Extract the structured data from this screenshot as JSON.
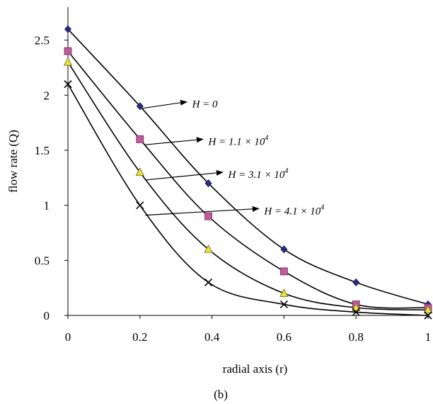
{
  "chart_data": {
    "type": "line",
    "xlabel": "radial axis (r)",
    "ylabel": "flow rate (Q)",
    "caption": "(b)",
    "xlim": [
      0,
      1
    ],
    "ylim": [
      0,
      2.8
    ],
    "x_ticks": [
      0,
      0.2,
      0.4,
      0.6,
      0.8,
      1
    ],
    "x_tick_labels": [
      "0",
      "0.2",
      "0.4",
      "0.6",
      "0.8",
      "1"
    ],
    "y_ticks": [
      0,
      0.5,
      1,
      1.5,
      2,
      2.5
    ],
    "y_tick_labels": [
      "0",
      "0.5",
      "1",
      "1.5",
      "2",
      "2.5"
    ],
    "grid": false,
    "legend": "none",
    "x": [
      0,
      0.2,
      0.39,
      0.6,
      0.8,
      1
    ],
    "series": [
      {
        "values": [
          2.6,
          1.9,
          1.2,
          0.6,
          0.3,
          0.1
        ],
        "marker": "diamond",
        "color": "#2b2a7e",
        "label": {
          "text": "H = 0",
          "sup": "",
          "arrow_from": [
            0.205,
            1.88
          ],
          "arrow_to": [
            0.33,
            1.94
          ],
          "text_at": [
            0.345,
            1.92
          ]
        }
      },
      {
        "values": [
          2.4,
          1.6,
          0.9,
          0.4,
          0.1,
          0.07
        ],
        "marker": "square",
        "color": "#c05a9c",
        "label": {
          "text": "H = 1.1 × 10",
          "sup": "4",
          "arrow_from": [
            0.215,
            1.55
          ],
          "arrow_to": [
            0.375,
            1.6
          ],
          "text_at": [
            0.39,
            1.58
          ]
        }
      },
      {
        "values": [
          2.3,
          1.3,
          0.6,
          0.2,
          0.07,
          0.05
        ],
        "marker": "triangle",
        "color": "#e8e13a",
        "label": {
          "text": "H = 3.1 × 10",
          "sup": "4",
          "arrow_from": [
            0.215,
            1.23
          ],
          "arrow_to": [
            0.43,
            1.3
          ],
          "text_at": [
            0.445,
            1.28
          ]
        }
      },
      {
        "values": [
          2.1,
          1.0,
          0.3,
          0.1,
          0.03,
          0.0
        ],
        "marker": "cross",
        "color": "#000000",
        "label": {
          "text": "H = 4.1 × 10",
          "sup": "4",
          "arrow_from": [
            0.215,
            0.91
          ],
          "arrow_to": [
            0.53,
            0.97
          ],
          "text_at": [
            0.545,
            0.95
          ]
        }
      }
    ]
  }
}
